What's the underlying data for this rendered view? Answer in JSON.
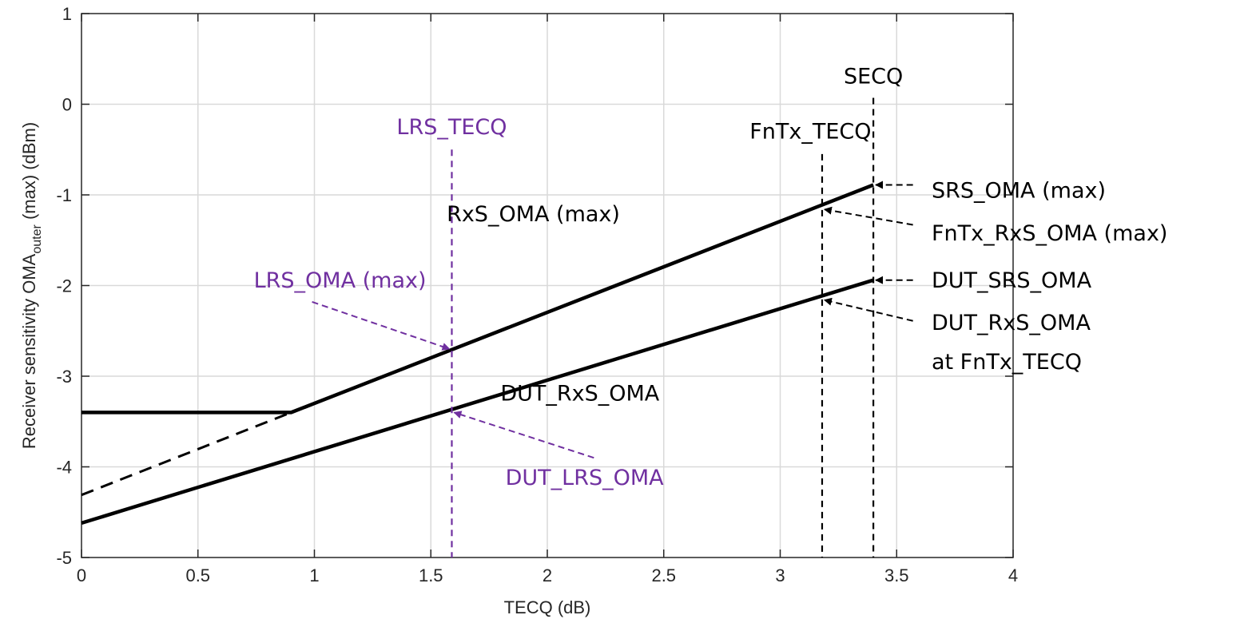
{
  "chart_data": {
    "type": "line",
    "xlabel": "TECQ (dB)",
    "ylabel_main": "Receiver sensitivity OMA",
    "ylabel_sub": "outer",
    "ylabel_tail": " (max) (dBm)",
    "xlim": [
      0,
      4
    ],
    "ylim": [
      -5,
      1
    ],
    "xticks": [
      0,
      0.5,
      1,
      1.5,
      2,
      2.5,
      3,
      3.5,
      4
    ],
    "yticks": [
      -5,
      -4,
      -3,
      -2,
      -1,
      0,
      1
    ],
    "xtick_labels": [
      "0",
      "0.5",
      "1",
      "1.5",
      "2",
      "2.5",
      "3",
      "3.5",
      "4"
    ],
    "ytick_labels": [
      "-5",
      "-4",
      "-3",
      "-2",
      "-1",
      "0",
      "1"
    ],
    "grid": true,
    "colors": {
      "black": "#000000",
      "purple": "#7030a0",
      "axis": "#262626"
    },
    "series": [
      {
        "id": "rxs",
        "style": "solid",
        "color": "#000000",
        "points": [
          [
            0,
            -3.4
          ],
          [
            0.9,
            -3.4
          ],
          [
            3.4,
            -0.89
          ]
        ]
      },
      {
        "id": "rxs-ext",
        "style": "dashed",
        "color": "#000000",
        "points": [
          [
            0,
            -4.31
          ],
          [
            0.9,
            -3.4
          ]
        ]
      },
      {
        "id": "dut",
        "style": "solid",
        "color": "#000000",
        "points": [
          [
            0,
            -4.62
          ],
          [
            3.4,
            -1.94
          ]
        ]
      }
    ],
    "vlines": [
      {
        "id": "lrs-tecq",
        "x": 1.59,
        "y_top": -0.5,
        "color": "#7030a0"
      },
      {
        "id": "fntx-tecq",
        "x": 3.18,
        "y_top": -0.55,
        "color": "#000000"
      },
      {
        "id": "secq",
        "x": 3.4,
        "y_top": 0.07,
        "color": "#000000"
      }
    ],
    "labels": [
      {
        "id": "lrs-tecq-label",
        "text": "LRS_TECQ",
        "x": 1.59,
        "y": -0.33,
        "anchor": "middle",
        "color": "#7030a0"
      },
      {
        "id": "fntx-tecq-label",
        "text": "FnTx_TECQ",
        "x": 3.13,
        "y": -0.38,
        "anchor": "middle",
        "color": "#000000"
      },
      {
        "id": "secq-label",
        "text": "SECQ",
        "x": 3.4,
        "y": 0.23,
        "anchor": "middle",
        "color": "#000000"
      },
      {
        "id": "rxs-oma-label",
        "text": "RxS_OMA (max)",
        "x": 1.94,
        "y": -1.29,
        "anchor": "middle",
        "color": "#000000"
      },
      {
        "id": "dut-rxs-oma-label",
        "text": "DUT_RxS_OMA",
        "x": 2.14,
        "y": -3.27,
        "anchor": "middle",
        "color": "#000000"
      },
      {
        "id": "lrs-oma-label",
        "text": "LRS_OMA (max)",
        "x": 1.11,
        "y": -2.02,
        "anchor": "middle",
        "color": "#7030a0"
      },
      {
        "id": "dut-lrs-oma-label",
        "text": "DUT_LRS_OMA",
        "x": 2.16,
        "y": -4.2,
        "anchor": "middle",
        "color": "#7030a0"
      },
      {
        "id": "srs-oma-label",
        "text": "SRS_OMA (max)",
        "x": 3.65,
        "y": -1.03,
        "anchor": "start",
        "color": "#000000"
      },
      {
        "id": "fntx-rxs-oma-label",
        "text": "FnTx_RxS_OMA (max)",
        "x": 3.65,
        "y": -1.5,
        "anchor": "start",
        "color": "#000000"
      },
      {
        "id": "dut-srs-oma-label",
        "text": "DUT_SRS_OMA",
        "x": 3.65,
        "y": -2.02,
        "anchor": "start",
        "color": "#000000"
      },
      {
        "id": "dut-rxs-oma-fntx-label-1",
        "text": "DUT_RxS_OMA",
        "x": 3.65,
        "y": -2.49,
        "anchor": "start",
        "color": "#000000"
      },
      {
        "id": "dut-rxs-oma-fntx-label-2",
        "text": "at FnTx_TECQ",
        "x": 3.65,
        "y": -2.92,
        "anchor": "start",
        "color": "#000000"
      }
    ],
    "arrows": [
      {
        "id": "arrow-srs-oma",
        "from": [
          3.57,
          -0.89
        ],
        "to": [
          3.41,
          -0.89
        ],
        "color": "#000000"
      },
      {
        "id": "arrow-fntx-rxs-oma",
        "from": [
          3.57,
          -1.33
        ],
        "to": [
          3.19,
          -1.16
        ],
        "color": "#000000"
      },
      {
        "id": "arrow-dut-srs-oma",
        "from": [
          3.57,
          -1.94
        ],
        "to": [
          3.41,
          -1.94
        ],
        "color": "#000000"
      },
      {
        "id": "arrow-dut-rxs-oma-fntx",
        "from": [
          3.57,
          -2.39
        ],
        "to": [
          3.19,
          -2.16
        ],
        "color": "#000000"
      },
      {
        "id": "arrow-lrs-oma",
        "from": [
          0.99,
          -2.18
        ],
        "to": [
          1.58,
          -2.7
        ],
        "color": "#7030a0"
      },
      {
        "id": "arrow-dut-lrs-oma",
        "from": [
          2.2,
          -3.9
        ],
        "to": [
          1.6,
          -3.4
        ],
        "color": "#7030a0"
      }
    ]
  }
}
